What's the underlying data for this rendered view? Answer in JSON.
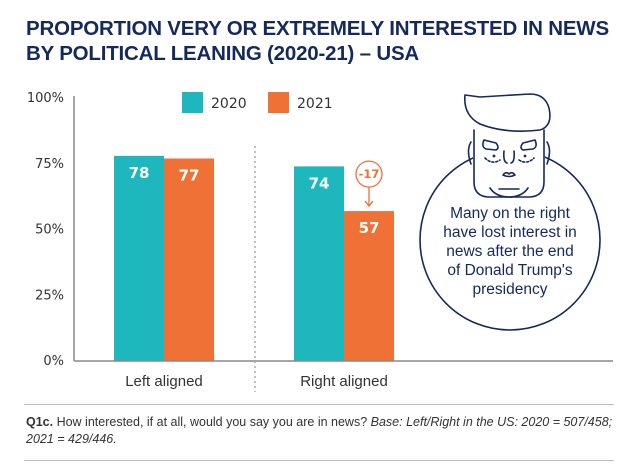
{
  "title": {
    "line1": "PROPORTION VERY OR EXTREMELY INTERESTED IN NEWS",
    "line2": "BY POLITICAL LEANING (2020-21) – USA"
  },
  "colors": {
    "series_2020": "#1fb7be",
    "series_2021": "#ef7136",
    "title": "#142a5c",
    "axis": "#888888",
    "text": "#333333"
  },
  "chart_data": {
    "type": "bar",
    "title": "PROPORTION VERY OR EXTREMELY INTERESTED IN NEWS BY POLITICAL LEANING (2020-21) – USA",
    "xlabel": "",
    "ylabel": "",
    "categories": [
      "Left aligned",
      "Right aligned"
    ],
    "series": [
      {
        "name": "2020",
        "values": [
          78,
          74
        ]
      },
      {
        "name": "2021",
        "values": [
          77,
          57
        ]
      }
    ],
    "ylim": [
      0,
      100
    ],
    "yticks": [
      0,
      25,
      50,
      75,
      100
    ],
    "ytick_labels": [
      "0%",
      "25%",
      "50%",
      "75%",
      "100%"
    ],
    "grid": false,
    "legend": {
      "position": "top-center",
      "entries": [
        "2020",
        "2021"
      ]
    },
    "annotations": [
      {
        "category": "Right aligned",
        "series": "2021",
        "text": "-17",
        "type": "change-badge"
      }
    ]
  },
  "callout": {
    "lines": [
      "Many on the right",
      "have lost interest in",
      "news after the end",
      "of Donald Trump's",
      "presidency"
    ],
    "icon": "caricature-face-icon"
  },
  "footnote": {
    "question_id": "Q1c.",
    "question": " How interested, if at all, would you say you are in news? ",
    "base": "Base: Left/Right in the US: 2020 = 507/458; 2021 = 429/446."
  }
}
